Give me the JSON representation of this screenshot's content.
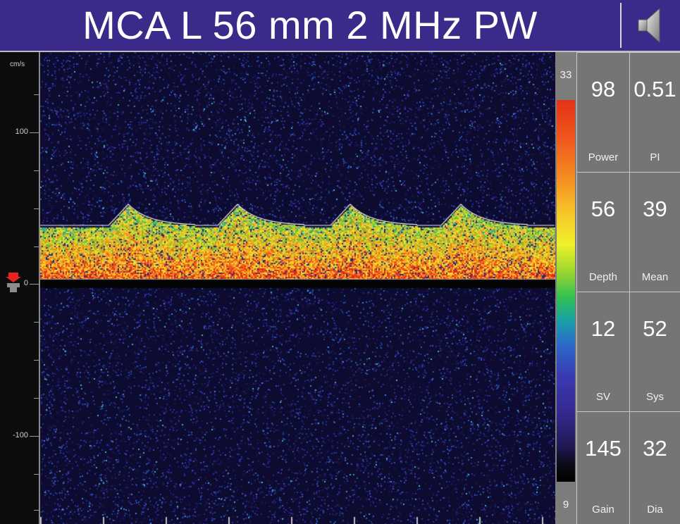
{
  "header": {
    "title": "MCA L 56 mm 2 MHz PW",
    "speaker_icon": "speaker-icon"
  },
  "axis": {
    "unit": "cm/s",
    "labels": [
      "100",
      "0",
      "-100"
    ]
  },
  "color_scale": {
    "max": "33",
    "min": "9"
  },
  "parameters": [
    {
      "value": "98",
      "label": "Power"
    },
    {
      "value": "0.51",
      "label": "PI"
    },
    {
      "value": "56",
      "label": "Depth"
    },
    {
      "value": "39",
      "label": "Mean"
    },
    {
      "value": "12",
      "label": "SV"
    },
    {
      "value": "52",
      "label": "Sys"
    },
    {
      "value": "145",
      "label": "Gain"
    },
    {
      "value": "32",
      "label": "Dia"
    }
  ],
  "colors": {
    "title_bar": "#3b2a8a",
    "spectrum_bg": "#0e0b30",
    "panel": "#757575"
  }
}
